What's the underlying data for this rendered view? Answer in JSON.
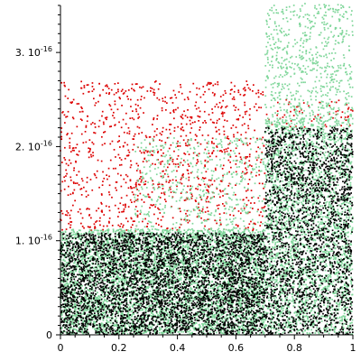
{
  "chart_data": {
    "type": "scatter",
    "title": "",
    "xlabel": "",
    "ylabel": "",
    "xlim": [
      0,
      1
    ],
    "ylim": [
      0,
      3.5e-16
    ],
    "grid": false,
    "legend": "none",
    "x_ticks": [
      {
        "value": 0,
        "label": "0"
      },
      {
        "value": 0.2,
        "label": "0.2"
      },
      {
        "value": 0.4,
        "label": "0.4"
      },
      {
        "value": 0.6,
        "label": "0.6"
      },
      {
        "value": 0.8,
        "label": "0.8"
      },
      {
        "value": 1,
        "label": "1"
      }
    ],
    "y_ticks": [
      {
        "value": 0,
        "mantissa": "0",
        "exponent": ""
      },
      {
        "value": 1e-16,
        "mantissa": "1. 10",
        "exponent": "-16"
      },
      {
        "value": 2e-16,
        "mantissa": "2. 10",
        "exponent": "-16"
      },
      {
        "value": 3e-16,
        "mantissa": "3. 10",
        "exponent": "-16"
      }
    ],
    "series": [
      {
        "color": "#dd0000",
        "regions": [
          {
            "x": [
              0.0,
              0.7
            ],
            "y_min": 1.1e-16,
            "y_max": 2.7e-16,
            "count": 1100
          },
          {
            "x": [
              0.7,
              1.0
            ],
            "y_min": 2.2e-16,
            "y_max": 2.5e-16,
            "count": 60
          }
        ]
      },
      {
        "color": "#7fd69a",
        "regions": [
          {
            "x": [
              0.0,
              0.7
            ],
            "y_min": 0.0,
            "y_max": 1.12e-16,
            "count": 5200
          },
          {
            "x": [
              0.25,
              0.7
            ],
            "y_min": 1.1e-16,
            "y_max": 2.1e-16,
            "count": 500
          },
          {
            "x": [
              0.7,
              1.0
            ],
            "y_min": 0.0,
            "y_max": 2.3e-16,
            "count": 2800
          },
          {
            "x": [
              0.7,
              1.0
            ],
            "y_min": 2.3e-16,
            "y_max": 3.55e-16,
            "count": 650
          }
        ]
      },
      {
        "color": "#000000",
        "regions": [
          {
            "x": [
              0.0,
              0.7
            ],
            "y_min": 0.0,
            "y_max": 1.08e-16,
            "count": 4200
          },
          {
            "x": [
              0.7,
              1.0
            ],
            "y_min": 0.0,
            "y_max": 2.2e-16,
            "count": 2200
          }
        ]
      }
    ]
  }
}
